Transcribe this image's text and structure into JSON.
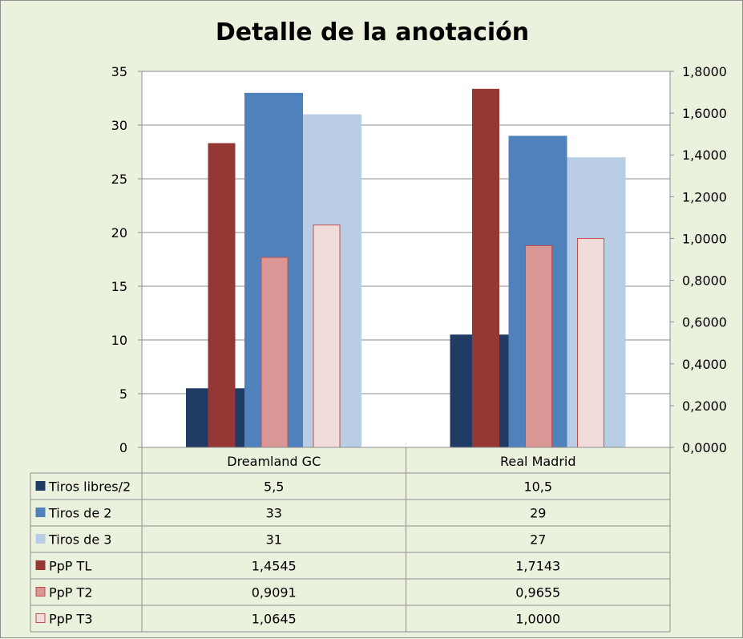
{
  "chart_data": {
    "type": "bar",
    "title": "Detalle de la anotación",
    "categories": [
      "Dreamland GC",
      "Real Madrid"
    ],
    "y_left": {
      "range": [
        0,
        35
      ],
      "ticks": [
        "0",
        "5",
        "10",
        "15",
        "20",
        "25",
        "30",
        "35"
      ]
    },
    "y_right": {
      "range": [
        0,
        1.8
      ],
      "ticks": [
        "0,0000",
        "0,2000",
        "0,4000",
        "0,6000",
        "0,8000",
        "1,0000",
        "1,2000",
        "1,4000",
        "1,6000",
        "1,8000"
      ]
    },
    "gridlines": true,
    "legend": "data-table",
    "series": [
      {
        "name": "Tiros libres/2",
        "axis": "left",
        "values": [
          5.5,
          10.5
        ],
        "labels": [
          "5,5",
          "10,5"
        ],
        "color": "#1f3a63",
        "outline": "#1f3a63"
      },
      {
        "name": "Tiros de 2",
        "axis": "left",
        "values": [
          33,
          29
        ],
        "labels": [
          "33",
          "29"
        ],
        "color": "#4f81bd",
        "outline": "#4f81bd"
      },
      {
        "name": "Tiros de 3",
        "axis": "left",
        "values": [
          31,
          27
        ],
        "labels": [
          "31",
          "27"
        ],
        "color": "#b9cde5",
        "outline": "#b9cde5"
      },
      {
        "name": "PpP TL",
        "axis": "right",
        "values": [
          1.4545,
          1.7143
        ],
        "labels": [
          "1,4545",
          "1,7143"
        ],
        "color": "#953735",
        "outline": "#953735"
      },
      {
        "name": "PpP T2",
        "axis": "right",
        "values": [
          0.9091,
          0.9655
        ],
        "labels": [
          "0,9091",
          "0,9655"
        ],
        "color": "#d99694",
        "outline": "#c0504d"
      },
      {
        "name": "PpP T3",
        "axis": "right",
        "values": [
          1.0645,
          1.0
        ],
        "labels": [
          "1,0645",
          "1,0000"
        ],
        "color": "#f2dcdb",
        "outline": "#c0504d"
      }
    ]
  }
}
